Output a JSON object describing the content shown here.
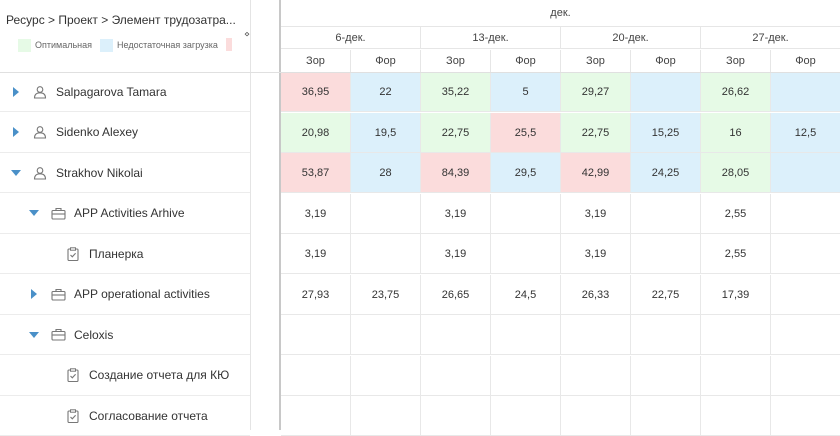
{
  "breadcrumb": "Ресурс > Проект > Элемент трудозатра...",
  "legend": [
    {
      "label": "Оптимальная",
      "color": "#e6fae6"
    },
    {
      "label": "Недостаточная загрузка",
      "color": "#dcf0fb"
    }
  ],
  "legend_overload_color": "#fbdcdc",
  "month_label": "дек.",
  "weeks": [
    "6-дек.",
    "13-дек.",
    "20-дек.",
    "27-дек."
  ],
  "sub_labels": {
    "plan": "Зор",
    "fact": "Фор"
  },
  "colors": {
    "optimal": "#e6fae6",
    "under": "#dcf0fb",
    "over": "#fbdcdc",
    "accent": "#4a90c8"
  },
  "rows": [
    {
      "name": "Salpagarova Tamara",
      "type": "resource",
      "expand": "collapsed",
      "level": 0,
      "cells": [
        [
          "36,95",
          "over"
        ],
        [
          "22",
          "under"
        ],
        [
          "35,22",
          "optimal"
        ],
        [
          "5",
          "under"
        ],
        [
          "29,27",
          "optimal"
        ],
        [
          "",
          "under"
        ],
        [
          "26,62",
          "optimal"
        ],
        [
          "",
          "under"
        ]
      ]
    },
    {
      "name": "Sidenko Alexey",
      "type": "resource",
      "expand": "collapsed",
      "level": 0,
      "cells": [
        [
          "20,98",
          "optimal"
        ],
        [
          "19,5",
          "under"
        ],
        [
          "22,75",
          "optimal"
        ],
        [
          "25,5",
          "over"
        ],
        [
          "22,75",
          "optimal"
        ],
        [
          "15,25",
          "under"
        ],
        [
          "16",
          "optimal"
        ],
        [
          "12,5",
          "under"
        ]
      ]
    },
    {
      "name": "Strakhov Nikolai",
      "type": "resource",
      "expand": "expanded",
      "level": 0,
      "cells": [
        [
          "53,87",
          "over"
        ],
        [
          "28",
          "under"
        ],
        [
          "84,39",
          "over"
        ],
        [
          "29,5",
          "under"
        ],
        [
          "42,99",
          "over"
        ],
        [
          "24,25",
          "under"
        ],
        [
          "28,05",
          "optimal"
        ],
        [
          "",
          "under"
        ]
      ]
    },
    {
      "name": "APP Activities Arhive",
      "type": "project",
      "expand": "expanded",
      "level": 1,
      "cells": [
        [
          "3,19",
          ""
        ],
        [
          "",
          ""
        ],
        [
          "3,19",
          ""
        ],
        [
          "",
          ""
        ],
        [
          "3,19",
          ""
        ],
        [
          "",
          ""
        ],
        [
          "2,55",
          ""
        ],
        [
          "",
          ""
        ]
      ]
    },
    {
      "name": "Планерка",
      "type": "task",
      "expand": "none",
      "level": 2,
      "cells": [
        [
          "3,19",
          ""
        ],
        [
          "",
          ""
        ],
        [
          "3,19",
          ""
        ],
        [
          "",
          ""
        ],
        [
          "3,19",
          ""
        ],
        [
          "",
          ""
        ],
        [
          "2,55",
          ""
        ],
        [
          "",
          ""
        ]
      ]
    },
    {
      "name": "APP operational activities",
      "type": "project",
      "expand": "collapsed",
      "level": 1,
      "cells": [
        [
          "27,93",
          ""
        ],
        [
          "23,75",
          ""
        ],
        [
          "26,65",
          ""
        ],
        [
          "24,5",
          ""
        ],
        [
          "26,33",
          ""
        ],
        [
          "22,75",
          ""
        ],
        [
          "17,39",
          ""
        ],
        [
          "",
          ""
        ]
      ]
    },
    {
      "name": "Celoxis",
      "type": "project",
      "expand": "expanded",
      "level": 1,
      "cells": [
        [
          "",
          ""
        ],
        [
          "",
          ""
        ],
        [
          "",
          ""
        ],
        [
          "",
          ""
        ],
        [
          "",
          ""
        ],
        [
          "",
          ""
        ],
        [
          "",
          ""
        ],
        [
          "",
          ""
        ]
      ]
    },
    {
      "name": "Создание отчета для КЮ",
      "type": "task",
      "expand": "none",
      "level": 2,
      "cells": [
        [
          "",
          ""
        ],
        [
          "",
          ""
        ],
        [
          "",
          ""
        ],
        [
          "",
          ""
        ],
        [
          "",
          ""
        ],
        [
          "",
          ""
        ],
        [
          "",
          ""
        ],
        [
          "",
          ""
        ]
      ]
    },
    {
      "name": "Согласование отчета",
      "type": "task",
      "expand": "none",
      "level": 2,
      "cells": [
        [
          "",
          ""
        ],
        [
          "",
          ""
        ],
        [
          "",
          ""
        ],
        [
          "",
          ""
        ],
        [
          "",
          ""
        ],
        [
          "",
          ""
        ],
        [
          "",
          ""
        ],
        [
          "",
          ""
        ]
      ]
    }
  ]
}
